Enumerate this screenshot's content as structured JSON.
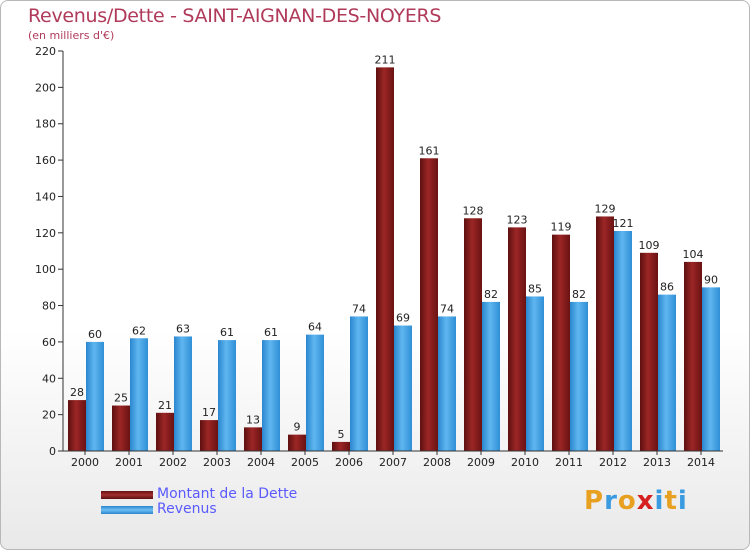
{
  "header": {
    "title": "Revenus/Dette - SAINT-AIGNAN-DES-NOYERS",
    "unit": "(en milliers d'€)"
  },
  "chart_data": {
    "type": "bar",
    "title": "Revenus/Dette - SAINT-AIGNAN-DES-NOYERS",
    "ylabel": "(en milliers d'€)",
    "categories": [
      "2000",
      "2001",
      "2002",
      "2003",
      "2004",
      "2005",
      "2006",
      "2007",
      "2008",
      "2009",
      "2010",
      "2011",
      "2012",
      "2013",
      "2014"
    ],
    "series": [
      {
        "name": "Montant de la Dette",
        "color": "#8b1c1c",
        "values": [
          28,
          25,
          21,
          17,
          13,
          9,
          5,
          211,
          161,
          128,
          123,
          119,
          129,
          109,
          104
        ]
      },
      {
        "name": "Revenus",
        "color": "#3a9be0",
        "values": [
          60,
          62,
          63,
          61,
          61,
          64,
          74,
          69,
          74,
          82,
          85,
          82,
          121,
          86,
          90
        ]
      }
    ],
    "ylim": [
      0,
      220
    ],
    "yticks": [
      0,
      20,
      40,
      60,
      80,
      100,
      120,
      140,
      160,
      180,
      200,
      220
    ],
    "legend_position": "bottom-left"
  },
  "legend": {
    "items": [
      "Montant de la Dette",
      "Revenus"
    ]
  },
  "logo": {
    "letters": [
      "P",
      "r",
      "o",
      "x",
      "i",
      "t",
      "i"
    ],
    "colors": [
      "#e8a020",
      "#3a9be0",
      "#e8a020",
      "#d62020",
      "#3a9be0",
      "#e8a020",
      "#3a9be0"
    ]
  }
}
